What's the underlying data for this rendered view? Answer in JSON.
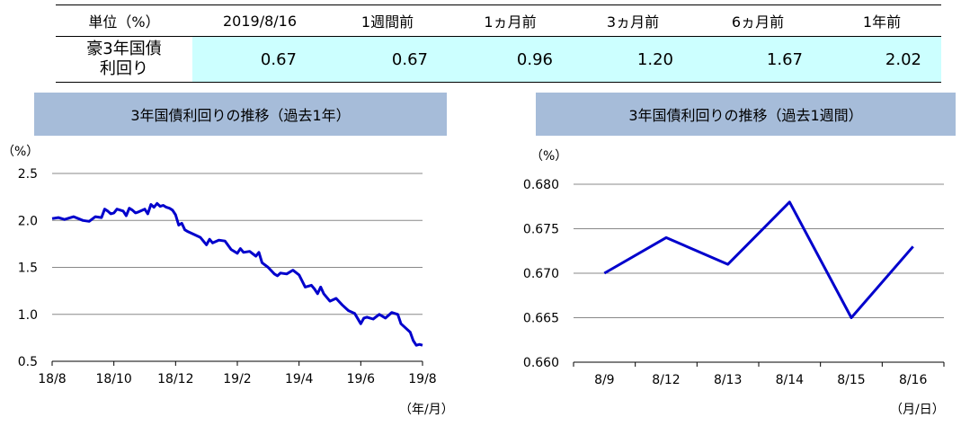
{
  "table": {
    "headers": [
      "単位（%）",
      "2019/8/16",
      "1週間前",
      "1ヵ月前",
      "3ヵ月前",
      "6ヵ月前",
      "1年前"
    ],
    "row_label_line1": "豪3年国債",
    "row_label_line2": "利回り",
    "values": [
      "0.67",
      "0.67",
      "0.96",
      "1.20",
      "1.67",
      "2.02"
    ],
    "highlight_color": "#ccffff"
  },
  "chart_data": [
    {
      "type": "line",
      "title": "3年国債利回りの推移（過去1年）",
      "ylabel": "（%）",
      "xlabel": "（年/月）",
      "ylim": [
        0.5,
        2.5
      ],
      "yticks": [
        "0.5",
        "1.0",
        "1.5",
        "2.0",
        "2.5"
      ],
      "xticks": [
        "18/8",
        "18/10",
        "18/12",
        "19/2",
        "19/4",
        "19/6",
        "19/8"
      ],
      "grid": true,
      "color": "#0000cc",
      "series": [
        {
          "x": [
            0.0,
            0.1,
            0.2,
            0.35,
            0.5,
            0.6,
            0.7,
            0.8,
            0.85,
            0.9,
            0.95,
            1.0,
            1.05,
            1.15,
            1.2,
            1.25,
            1.3,
            1.35,
            1.4,
            1.5,
            1.55,
            1.6,
            1.65,
            1.7,
            1.75,
            1.8,
            1.85,
            1.9,
            1.95,
            2.0,
            2.05,
            2.1,
            2.15,
            2.2,
            2.3,
            2.4,
            2.5,
            2.55,
            2.6,
            2.7,
            2.8,
            2.9,
            3.0,
            3.05,
            3.1,
            3.2,
            3.3,
            3.35,
            3.4,
            3.5,
            3.6,
            3.65,
            3.7,
            3.8,
            3.9,
            4.0,
            4.1,
            4.2,
            4.25,
            4.3,
            4.35,
            4.4,
            4.5,
            4.6,
            4.7,
            4.8,
            4.9,
            5.0,
            5.05,
            5.1,
            5.2,
            5.3,
            5.4,
            5.5,
            5.6,
            5.65,
            5.7,
            5.8,
            5.85,
            5.9,
            5.95,
            6.0
          ],
          "y": [
            2.02,
            2.03,
            2.01,
            2.04,
            2.0,
            1.99,
            2.04,
            2.03,
            2.12,
            2.1,
            2.07,
            2.08,
            2.12,
            2.1,
            2.05,
            2.13,
            2.11,
            2.08,
            2.09,
            2.12,
            2.07,
            2.17,
            2.14,
            2.18,
            2.15,
            2.16,
            2.14,
            2.13,
            2.11,
            2.06,
            1.95,
            1.97,
            1.9,
            1.88,
            1.85,
            1.82,
            1.74,
            1.8,
            1.76,
            1.79,
            1.78,
            1.69,
            1.65,
            1.7,
            1.66,
            1.67,
            1.62,
            1.66,
            1.55,
            1.5,
            1.43,
            1.41,
            1.44,
            1.43,
            1.47,
            1.42,
            1.29,
            1.31,
            1.27,
            1.22,
            1.29,
            1.22,
            1.14,
            1.17,
            1.1,
            1.04,
            1.01,
            0.9,
            0.96,
            0.97,
            0.95,
            1.0,
            0.96,
            1.02,
            1.0,
            0.9,
            0.87,
            0.81,
            0.72,
            0.67,
            0.68,
            0.67
          ]
        }
      ]
    },
    {
      "type": "line",
      "title": "3年国債利回りの推移（過去1週間）",
      "ylabel": "（%）",
      "xlabel": "（月/日）",
      "ylim": [
        0.66,
        0.68
      ],
      "yticks": [
        "0.660",
        "0.665",
        "0.670",
        "0.675",
        "0.680"
      ],
      "categories": [
        "8/9",
        "8/12",
        "8/13",
        "8/14",
        "8/15",
        "8/16"
      ],
      "grid": true,
      "color": "#0000cc",
      "series": [
        {
          "values": [
            0.67,
            0.674,
            0.671,
            0.678,
            0.665,
            0.673
          ]
        }
      ]
    }
  ]
}
